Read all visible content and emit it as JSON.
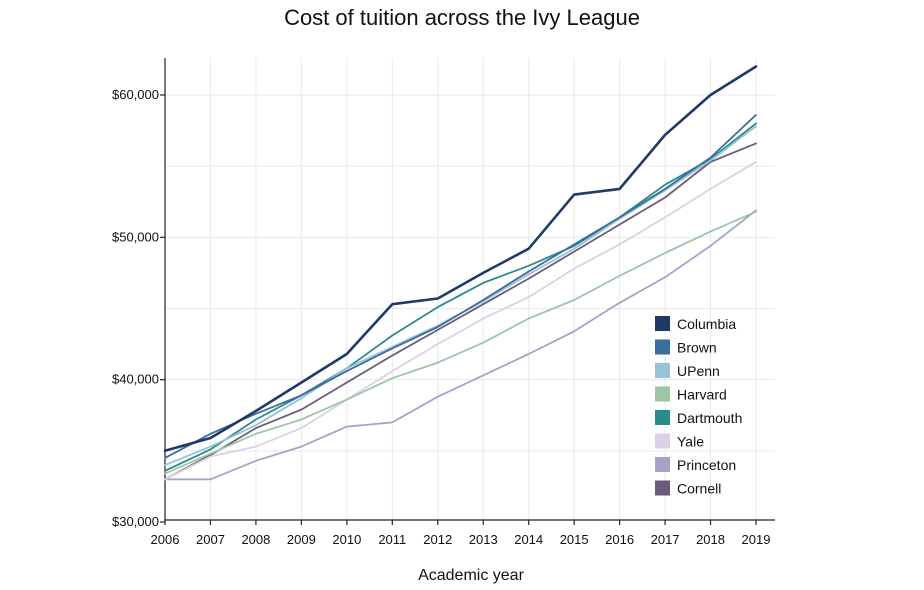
{
  "chart_data": {
    "type": "line",
    "title": "Cost of tuition across the Ivy League",
    "xlabel": "Academic year",
    "ylabel": "",
    "x": [
      2006,
      2007,
      2008,
      2009,
      2010,
      2011,
      2012,
      2013,
      2014,
      2015,
      2016,
      2017,
      2018,
      2019
    ],
    "xtick_labels": [
      "2006",
      "2007",
      "2008",
      "2009",
      "2010",
      "2011",
      "2012",
      "2013",
      "2014",
      "2015",
      "2016",
      "2017",
      "2018",
      "2019"
    ],
    "ylim": [
      30000,
      62500
    ],
    "yticks": [
      30000,
      40000,
      50000,
      60000
    ],
    "ytick_labels": [
      "$30,000",
      "$40,000",
      "$50,000",
      "$60,000"
    ],
    "grid": true,
    "legend_position": "right",
    "series": [
      {
        "name": "Columbia",
        "color": "#1f3a68",
        "values": [
          35000,
          35900,
          37800,
          39800,
          41800,
          45300,
          45700,
          47500,
          49200,
          53000,
          53400,
          57200,
          60000,
          62000
        ]
      },
      {
        "name": "Brown",
        "color": "#3b6d9d",
        "values": [
          34500,
          36200,
          37600,
          38900,
          40600,
          42200,
          43700,
          45600,
          47600,
          49500,
          51400,
          53400,
          55600,
          58600
        ]
      },
      {
        "name": "UPenn",
        "color": "#95c3d8",
        "values": [
          34000,
          35300,
          36800,
          38700,
          40800,
          42300,
          43800,
          45500,
          47400,
          49200,
          51300,
          53300,
          55400,
          57800
        ]
      },
      {
        "name": "Harvard",
        "color": "#9cc6a6",
        "values": [
          33400,
          34800,
          36200,
          37200,
          38600,
          40100,
          41200,
          42600,
          44300,
          45600,
          47300,
          48900,
          50400,
          51800
        ]
      },
      {
        "name": "Dartmouth",
        "color": "#2b8a8a",
        "values": [
          33600,
          35100,
          37200,
          38900,
          40800,
          43100,
          45100,
          46800,
          48000,
          49400,
          51400,
          53700,
          55500,
          58000
        ]
      },
      {
        "name": "Yale",
        "color": "#dcd0e6",
        "values": [
          33000,
          34600,
          35300,
          36600,
          38600,
          40600,
          42500,
          44300,
          45800,
          47800,
          49500,
          51400,
          53400,
          55300
        ]
      },
      {
        "name": "Princeton",
        "color": "#a5a3c8",
        "values": [
          33000,
          33000,
          34300,
          35300,
          36700,
          37000,
          38800,
          40300,
          41800,
          43400,
          45400,
          47200,
          49400,
          51900
        ]
      },
      {
        "name": "Cornell",
        "color": "#6b5a78",
        "values": [
          33000,
          34700,
          36600,
          37900,
          39800,
          41700,
          43500,
          45300,
          47100,
          49000,
          50900,
          52800,
          55300,
          56600
        ]
      }
    ]
  }
}
